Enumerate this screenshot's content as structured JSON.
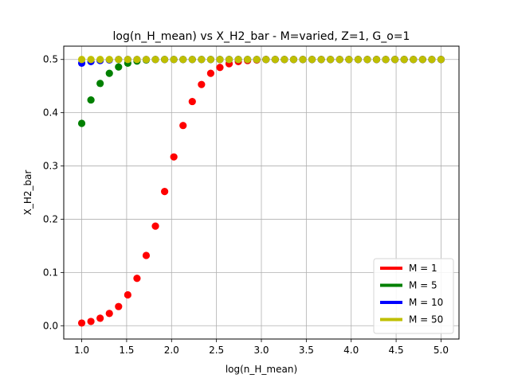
{
  "chart_data": {
    "type": "scatter",
    "title": "log(n_H_mean) vs X_H2_bar - M=varied, Z=1, G_o=1",
    "xlabel": "log(n_H_mean)",
    "ylabel": "X_H2_bar",
    "xlim": [
      0.8,
      5.2
    ],
    "ylim": [
      -0.025,
      0.525
    ],
    "xticks": [
      "1.0",
      "1.5",
      "2.0",
      "2.5",
      "3.0",
      "3.5",
      "4.0",
      "4.5",
      "5.0"
    ],
    "yticks": [
      "0.0",
      "0.1",
      "0.2",
      "0.3",
      "0.4",
      "0.5"
    ],
    "grid": true,
    "legend_position": "lower-right",
    "x": [
      1.0,
      1.1026,
      1.2051,
      1.3077,
      1.4103,
      1.5128,
      1.6154,
      1.7179,
      1.8205,
      1.9231,
      2.0256,
      2.1282,
      2.2308,
      2.3333,
      2.4359,
      2.5385,
      2.641,
      2.7436,
      2.8462,
      2.9487,
      3.0513,
      3.1538,
      3.2564,
      3.359,
      3.4615,
      3.5641,
      3.6667,
      3.7692,
      3.8718,
      3.9744,
      4.0769,
      4.1795,
      4.2821,
      4.3846,
      4.4872,
      4.5897,
      4.6923,
      4.7949,
      4.8974,
      5.0
    ],
    "series": [
      {
        "name": "M = 1",
        "color": "#ff0000",
        "values": [
          0.005,
          0.008,
          0.014,
          0.023,
          0.036,
          0.058,
          0.089,
          0.132,
          0.187,
          0.252,
          0.317,
          0.376,
          0.421,
          0.453,
          0.474,
          0.485,
          0.492,
          0.496,
          0.498,
          0.499,
          0.5,
          0.5,
          0.5,
          0.5,
          0.5,
          0.5,
          0.5,
          0.5,
          0.5,
          0.5,
          0.5,
          0.5,
          0.5,
          0.5,
          0.5,
          0.5,
          0.5,
          0.5,
          0.5,
          0.5
        ]
      },
      {
        "name": "M = 5",
        "color": "#008000",
        "values": [
          0.38,
          0.424,
          0.455,
          0.474,
          0.486,
          0.493,
          0.497,
          0.499,
          0.5,
          0.5,
          0.5,
          0.5,
          0.5,
          0.5,
          0.5,
          0.5,
          0.5,
          0.5,
          0.5,
          0.5,
          0.5,
          0.5,
          0.5,
          0.5,
          0.5,
          0.5,
          0.5,
          0.5,
          0.5,
          0.5,
          0.5,
          0.5,
          0.5,
          0.5,
          0.5,
          0.5,
          0.5,
          0.5,
          0.5,
          0.5
        ]
      },
      {
        "name": "M = 10",
        "color": "#0000ff",
        "values": [
          0.493,
          0.496,
          0.498,
          0.499,
          0.5,
          0.5,
          0.5,
          0.5,
          0.5,
          0.5,
          0.5,
          0.5,
          0.5,
          0.5,
          0.5,
          0.5,
          0.5,
          0.5,
          0.5,
          0.5,
          0.5,
          0.5,
          0.5,
          0.5,
          0.5,
          0.5,
          0.5,
          0.5,
          0.5,
          0.5,
          0.5,
          0.5,
          0.5,
          0.5,
          0.5,
          0.5,
          0.5,
          0.5,
          0.5,
          0.5
        ]
      },
      {
        "name": "M = 50",
        "color": "#bfbf00",
        "values": [
          0.5,
          0.5,
          0.5,
          0.5,
          0.5,
          0.5,
          0.5,
          0.5,
          0.5,
          0.5,
          0.5,
          0.5,
          0.5,
          0.5,
          0.5,
          0.5,
          0.5,
          0.5,
          0.5,
          0.5,
          0.5,
          0.5,
          0.5,
          0.5,
          0.5,
          0.5,
          0.5,
          0.5,
          0.5,
          0.5,
          0.5,
          0.5,
          0.5,
          0.5,
          0.5,
          0.5,
          0.5,
          0.5,
          0.5,
          0.5
        ]
      }
    ]
  }
}
